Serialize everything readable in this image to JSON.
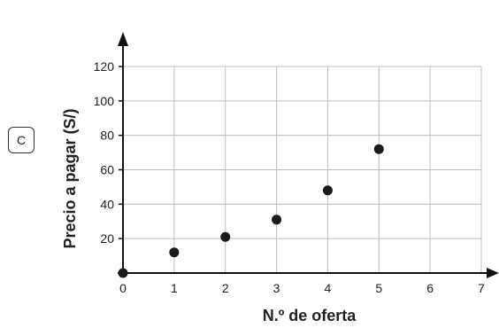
{
  "option_label": "C",
  "chart_data": {
    "type": "scatter",
    "title": "",
    "xlabel": "N.º de oferta",
    "ylabel": "Precio a pagar (S/)",
    "xlim": [
      0,
      7
    ],
    "ylim": [
      0,
      120
    ],
    "xticks": [
      0,
      1,
      2,
      3,
      4,
      5,
      6,
      7
    ],
    "yticks": [
      20,
      40,
      60,
      80,
      100,
      120
    ],
    "grid": true,
    "points": [
      {
        "x": 0,
        "y": 0
      },
      {
        "x": 1,
        "y": 12
      },
      {
        "x": 2,
        "y": 21
      },
      {
        "x": 3,
        "y": 31
      },
      {
        "x": 4,
        "y": 48
      },
      {
        "x": 5,
        "y": 72
      }
    ],
    "colors": {
      "point": "#1a1a1a",
      "grid": "#bdbdbd",
      "axis": "#111111"
    }
  }
}
